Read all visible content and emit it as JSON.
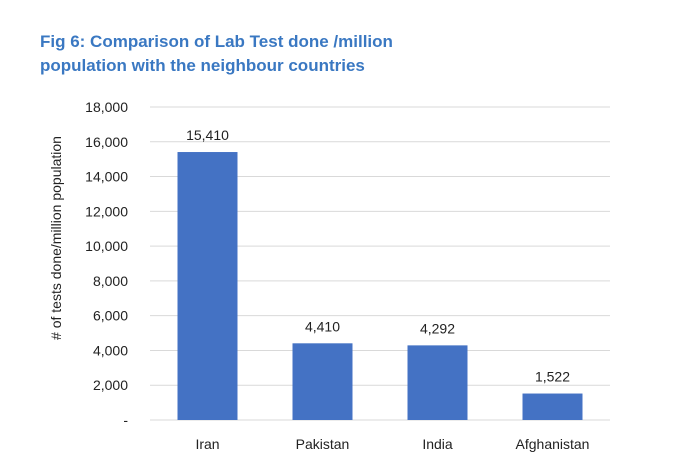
{
  "figure": {
    "title_line1": "Fig 6: Comparison of Lab Test done /million",
    "title_line2": "population with the neighbour countries"
  },
  "colors": {
    "title": "#3a78c2",
    "bar": "#4472c4",
    "grid": "#d9d9d9",
    "text": "#222222"
  },
  "chart_data": {
    "type": "bar",
    "title": "Fig 6: Comparison of Lab Test done /million population with the neighbour countries",
    "categories": [
      "Iran",
      "Pakistan",
      "India",
      "Afghanistan"
    ],
    "values": [
      15410,
      4410,
      4292,
      1522
    ],
    "data_labels": [
      "15,410",
      "4,410",
      "4,292",
      "1,522"
    ],
    "xlabel": "",
    "ylabel": "# of tests done/million population",
    "ylim": [
      0,
      18000
    ],
    "yticks": [
      0,
      2000,
      4000,
      6000,
      8000,
      10000,
      12000,
      14000,
      16000,
      18000
    ],
    "ytick_labels": [
      "-",
      "2,000",
      "4,000",
      "6,000",
      "8,000",
      "10,000",
      "12,000",
      "14,000",
      "16,000",
      "18,000"
    ],
    "grid": true,
    "legend": "none"
  }
}
